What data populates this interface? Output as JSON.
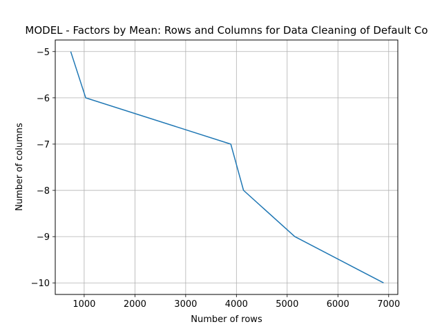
{
  "chart_data": {
    "type": "line",
    "title": "MODEL - Factors by Mean: Rows and Columns for Data Cleaning of Default Co",
    "xlabel": "Number of rows",
    "ylabel": "Number of columns",
    "xlim": [
      430,
      7180
    ],
    "ylim": [
      -10.25,
      -4.75
    ],
    "xticks": [
      1000,
      2000,
      3000,
      4000,
      5000,
      6000,
      7000
    ],
    "yticks": [
      -5,
      -6,
      -7,
      -8,
      -9,
      -10
    ],
    "grid": true,
    "legend": "none",
    "series": [
      {
        "color": "#1f77b4",
        "x": [
          735,
          1030,
          3890,
          4140,
          5150,
          6900
        ],
        "y": [
          -5,
          -6,
          -7,
          -8,
          -9,
          -10
        ]
      }
    ]
  }
}
